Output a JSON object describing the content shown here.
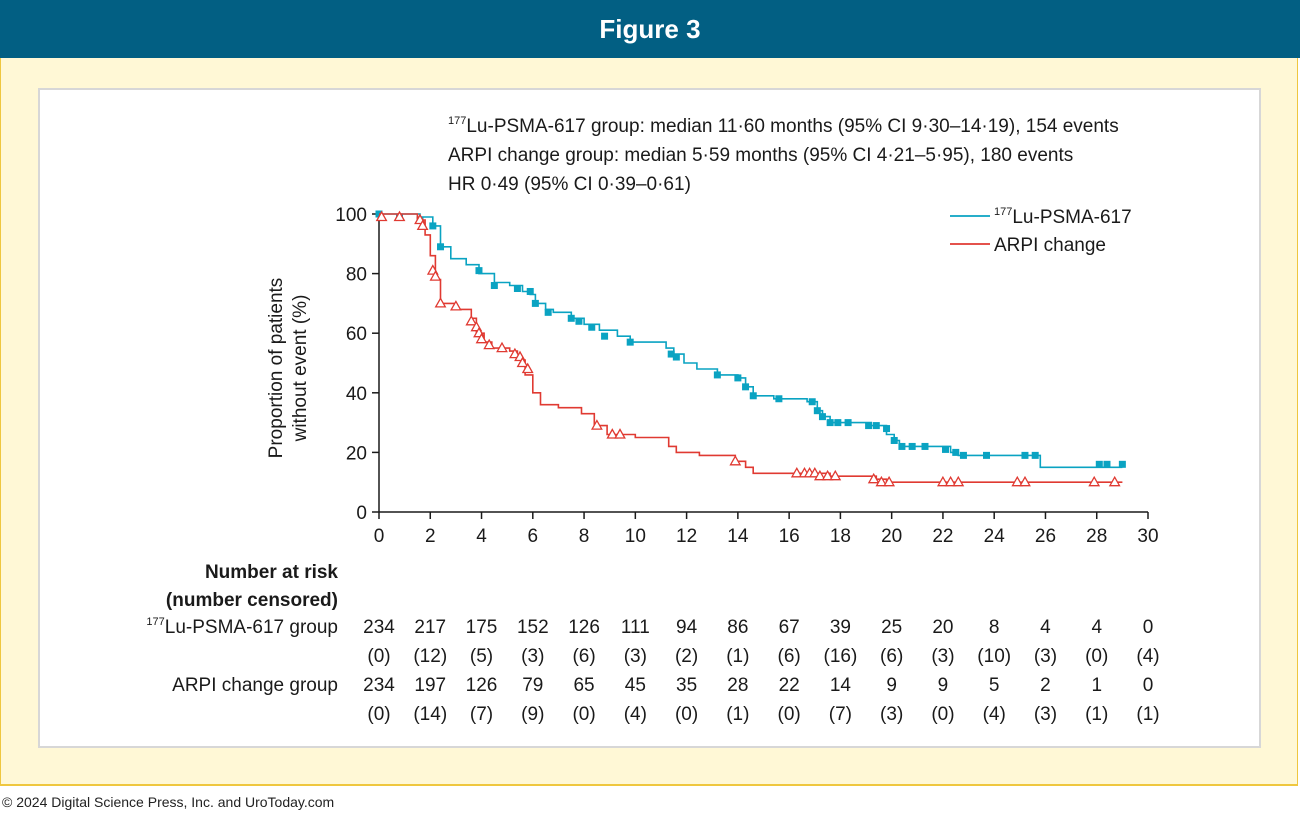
{
  "figure_title": "Figure 3",
  "footer": "© 2024 Digital Science Press, Inc. and UroToday.com",
  "colors": {
    "header_bg": "#025f83",
    "frame_bg": "#fff8d6",
    "frame_border": "#efc73f",
    "lu_series": "#0aa3c2",
    "arpi_series": "#e03a32"
  },
  "stats": {
    "line1_sup": "177",
    "line1": "Lu-PSMA-617 group: median 11·60 months (95% CI 9·30–14·19), 154 events",
    "line2": "ARPI change group: median 5·59 months (95% CI 4·21–5·95), 180 events",
    "line3": "HR 0·49 (95% CI 0·39–0·61)"
  },
  "legend": {
    "lu_sup": "177",
    "lu_label": "Lu-PSMA-617",
    "arpi_label": "ARPI change"
  },
  "chart_data": {
    "type": "line",
    "step": true,
    "ylabel_line1": "Proportion of patients",
    "ylabel_line2": "without event (%)",
    "xlim": [
      0,
      30
    ],
    "ylim": [
      0,
      100
    ],
    "xticks": [
      0,
      2,
      4,
      6,
      8,
      10,
      12,
      14,
      16,
      18,
      20,
      22,
      24,
      26,
      28,
      30
    ],
    "yticks": [
      0,
      20,
      40,
      60,
      80,
      100
    ],
    "legend_position": "top-right",
    "series": [
      {
        "name": "177Lu-PSMA-617",
        "color": "#0aa3c2",
        "marker": "square",
        "points": [
          [
            0,
            100
          ],
          [
            1.6,
            99
          ],
          [
            2.1,
            96
          ],
          [
            2.4,
            89
          ],
          [
            2.8,
            85
          ],
          [
            3.4,
            83
          ],
          [
            3.9,
            80
          ],
          [
            4.5,
            77
          ],
          [
            5.1,
            76
          ],
          [
            5.6,
            74
          ],
          [
            5.9,
            73
          ],
          [
            6.1,
            70
          ],
          [
            6.5,
            68
          ],
          [
            6.8,
            67
          ],
          [
            7.5,
            65
          ],
          [
            8.0,
            63
          ],
          [
            8.6,
            61
          ],
          [
            9.3,
            59
          ],
          [
            9.8,
            57
          ],
          [
            11.2,
            55
          ],
          [
            11.5,
            53
          ],
          [
            11.9,
            50
          ],
          [
            12.4,
            48
          ],
          [
            13.2,
            46
          ],
          [
            14.0,
            45
          ],
          [
            14.3,
            42
          ],
          [
            14.6,
            39
          ],
          [
            15.4,
            38
          ],
          [
            16.7,
            37
          ],
          [
            17.1,
            34
          ],
          [
            17.3,
            32
          ],
          [
            17.6,
            30
          ],
          [
            19.2,
            29
          ],
          [
            19.8,
            26
          ],
          [
            20.1,
            24
          ],
          [
            20.3,
            22
          ],
          [
            22.3,
            20
          ],
          [
            22.6,
            19
          ],
          [
            25.1,
            19
          ],
          [
            25.8,
            15
          ],
          [
            29.0,
            15
          ]
        ],
        "censored": [
          [
            0,
            100
          ],
          [
            0.8,
            99
          ],
          [
            1.6,
            98
          ],
          [
            2.1,
            96
          ],
          [
            2.4,
            89
          ],
          [
            3.9,
            81
          ],
          [
            4.5,
            76
          ],
          [
            5.4,
            75
          ],
          [
            5.9,
            74
          ],
          [
            6.1,
            70
          ],
          [
            6.6,
            67
          ],
          [
            7.5,
            65
          ],
          [
            7.8,
            64
          ],
          [
            8.3,
            62
          ],
          [
            8.8,
            59
          ],
          [
            9.8,
            57
          ],
          [
            11.4,
            53
          ],
          [
            11.6,
            52
          ],
          [
            13.2,
            46
          ],
          [
            14.0,
            45
          ],
          [
            14.3,
            42
          ],
          [
            14.6,
            39
          ],
          [
            15.6,
            38
          ],
          [
            16.9,
            37
          ],
          [
            17.1,
            34
          ],
          [
            17.3,
            32
          ],
          [
            17.6,
            30
          ],
          [
            17.9,
            30
          ],
          [
            18.3,
            30
          ],
          [
            19.1,
            29
          ],
          [
            19.4,
            29
          ],
          [
            19.8,
            28
          ],
          [
            20.1,
            24
          ],
          [
            20.4,
            22
          ],
          [
            20.8,
            22
          ],
          [
            21.3,
            22
          ],
          [
            22.1,
            21
          ],
          [
            22.5,
            20
          ],
          [
            22.8,
            19
          ],
          [
            23.7,
            19
          ],
          [
            25.2,
            19
          ],
          [
            25.6,
            19
          ],
          [
            28.1,
            16
          ],
          [
            28.4,
            16
          ],
          [
            29.0,
            16
          ]
        ]
      },
      {
        "name": "ARPI change",
        "color": "#e03a32",
        "marker": "triangle",
        "points": [
          [
            0,
            100
          ],
          [
            1.5,
            98
          ],
          [
            1.8,
            93
          ],
          [
            2.0,
            86
          ],
          [
            2.2,
            78
          ],
          [
            2.4,
            70
          ],
          [
            3.0,
            68
          ],
          [
            3.6,
            65
          ],
          [
            3.8,
            60
          ],
          [
            4.1,
            57
          ],
          [
            4.4,
            55
          ],
          [
            5.1,
            54
          ],
          [
            5.4,
            51
          ],
          [
            5.7,
            46
          ],
          [
            6.0,
            40
          ],
          [
            6.3,
            36
          ],
          [
            7.0,
            35
          ],
          [
            7.9,
            33
          ],
          [
            8.4,
            29
          ],
          [
            8.9,
            26
          ],
          [
            10.0,
            25
          ],
          [
            11.3,
            22
          ],
          [
            11.6,
            20
          ],
          [
            12.5,
            19
          ],
          [
            13.9,
            17
          ],
          [
            14.3,
            15
          ],
          [
            14.6,
            13
          ],
          [
            17.3,
            13
          ],
          [
            17.6,
            12
          ],
          [
            19.4,
            11
          ],
          [
            19.8,
            10
          ],
          [
            29.0,
            10
          ]
        ],
        "censored": [
          [
            0.1,
            99
          ],
          [
            0.8,
            99
          ],
          [
            1.6,
            98
          ],
          [
            1.7,
            96
          ],
          [
            2.1,
            81
          ],
          [
            2.2,
            79
          ],
          [
            2.4,
            70
          ],
          [
            3.0,
            69
          ],
          [
            3.6,
            64
          ],
          [
            3.8,
            62
          ],
          [
            3.9,
            60
          ],
          [
            4.0,
            58
          ],
          [
            4.3,
            56
          ],
          [
            4.8,
            55
          ],
          [
            5.3,
            53
          ],
          [
            5.5,
            52
          ],
          [
            5.6,
            50
          ],
          [
            5.8,
            48
          ],
          [
            8.5,
            29
          ],
          [
            9.1,
            26
          ],
          [
            9.4,
            26
          ],
          [
            13.9,
            17
          ],
          [
            16.3,
            13
          ],
          [
            16.6,
            13
          ],
          [
            16.8,
            13
          ],
          [
            17.0,
            13
          ],
          [
            17.2,
            12
          ],
          [
            17.5,
            12
          ],
          [
            17.8,
            12
          ],
          [
            19.3,
            11
          ],
          [
            19.6,
            10
          ],
          [
            19.9,
            10
          ],
          [
            22.0,
            10
          ],
          [
            22.3,
            10
          ],
          [
            22.6,
            10
          ],
          [
            24.9,
            10
          ],
          [
            25.2,
            10
          ],
          [
            27.9,
            10
          ],
          [
            28.7,
            10
          ]
        ]
      }
    ],
    "risk_table": {
      "heading_line1": "Number at risk",
      "heading_line2": "(number censored)",
      "times": [
        0,
        2,
        4,
        6,
        8,
        10,
        12,
        14,
        16,
        18,
        20,
        22,
        24,
        26,
        28,
        30
      ],
      "rows": [
        {
          "label_sup": "177",
          "label": "Lu-PSMA-617 group",
          "at_risk": [
            "234",
            "217",
            "175",
            "152",
            "126",
            "111",
            "94",
            "86",
            "67",
            "39",
            "25",
            "20",
            "8",
            "4",
            "4",
            "0"
          ],
          "censored": [
            "(0)",
            "(12)",
            "(5)",
            "(3)",
            "(6)",
            "(3)",
            "(2)",
            "(1)",
            "(6)",
            "(16)",
            "(6)",
            "(3)",
            "(10)",
            "(3)",
            "(0)",
            "(4)"
          ]
        },
        {
          "label_sup": "",
          "label": "ARPI change group",
          "at_risk": [
            "234",
            "197",
            "126",
            "79",
            "65",
            "45",
            "35",
            "28",
            "22",
            "14",
            "9",
            "9",
            "5",
            "2",
            "1",
            "0"
          ],
          "censored": [
            "(0)",
            "(14)",
            "(7)",
            "(9)",
            "(0)",
            "(4)",
            "(0)",
            "(1)",
            "(0)",
            "(7)",
            "(3)",
            "(0)",
            "(4)",
            "(3)",
            "(1)",
            "(1)"
          ]
        }
      ]
    }
  }
}
